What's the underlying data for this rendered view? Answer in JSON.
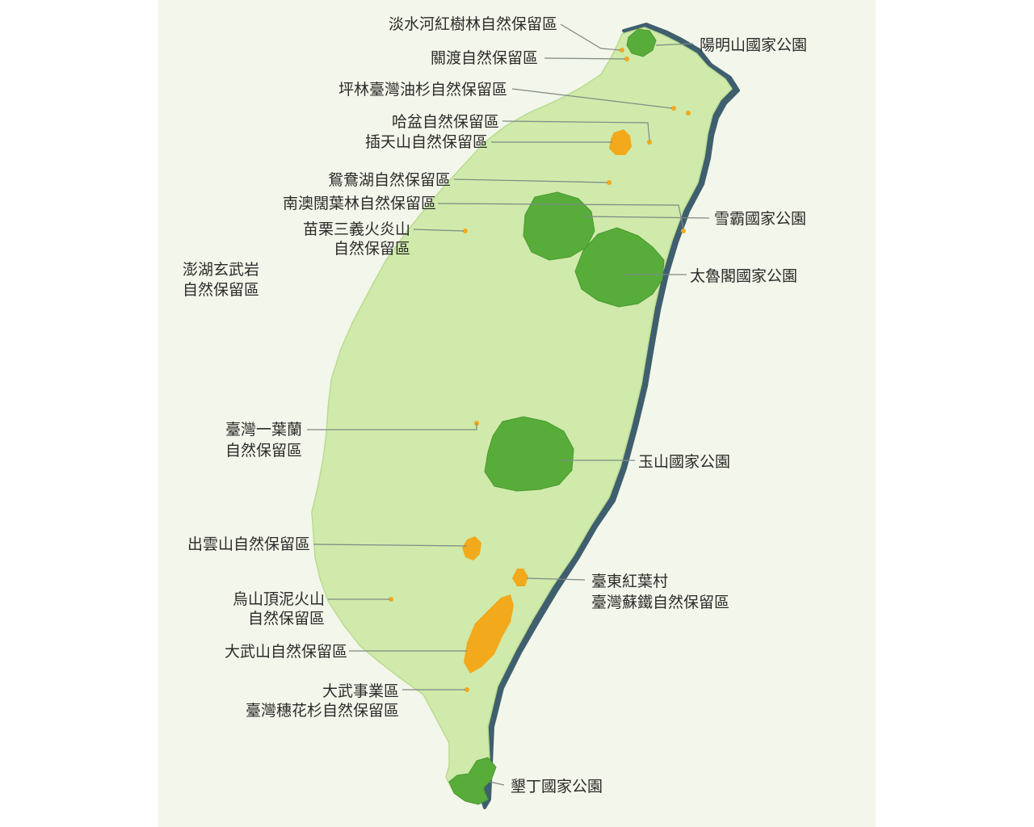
{
  "colors": {
    "island_fill": "#cfeaaa",
    "coast_shadow": "#3f5f6e",
    "national_park": "#58ad3a",
    "nature_reserve": "#f4ae1f",
    "label_text": "#2b2b2b",
    "leader_line": "#7d8a86"
  },
  "national_parks": [
    {
      "id": "yangmingshan",
      "name": "陽明山國家公園"
    },
    {
      "id": "shei-pa",
      "name": "雪霸國家公園"
    },
    {
      "id": "taroko",
      "name": "太魯閣國家公園"
    },
    {
      "id": "yushan",
      "name": "玉山國家公園"
    },
    {
      "id": "kenting",
      "name": "墾丁國家公園"
    }
  ],
  "nature_reserves": [
    {
      "id": "tamsui",
      "name": [
        "淡水河紅樹林自然保留區"
      ]
    },
    {
      "id": "guandu",
      "name": [
        "關渡自然保留區"
      ]
    },
    {
      "id": "pinglin",
      "name": [
        "坪林臺灣油杉自然保留區"
      ]
    },
    {
      "id": "hapen",
      "name": [
        "哈盆自然保留區"
      ]
    },
    {
      "id": "chatianshan",
      "name": [
        "插天山自然保留區"
      ]
    },
    {
      "id": "yuanyang",
      "name": [
        "鴛鴦湖自然保留區"
      ]
    },
    {
      "id": "nanao",
      "name": [
        "南澳闊葉林自然保留區"
      ]
    },
    {
      "id": "sanyi",
      "name": [
        "苗栗三義火炎山",
        "自然保留區"
      ]
    },
    {
      "id": "penghu",
      "name": [
        "澎湖玄武岩",
        "自然保留區"
      ]
    },
    {
      "id": "pleione",
      "name": [
        "臺灣一葉蘭",
        "自然保留區"
      ]
    },
    {
      "id": "chuyunshan",
      "name": [
        "出雲山自然保留區"
      ]
    },
    {
      "id": "hongye",
      "name": [
        "臺東紅葉村",
        "臺灣蘇鐵自然保留區"
      ]
    },
    {
      "id": "wushanding",
      "name": [
        "烏山頂泥火山",
        "自然保留區"
      ]
    },
    {
      "id": "dawushan",
      "name": [
        "大武山自然保留區"
      ]
    },
    {
      "id": "dawu-keteleeria",
      "name": [
        "大武事業區",
        "臺灣穗花杉自然保留區"
      ]
    }
  ]
}
